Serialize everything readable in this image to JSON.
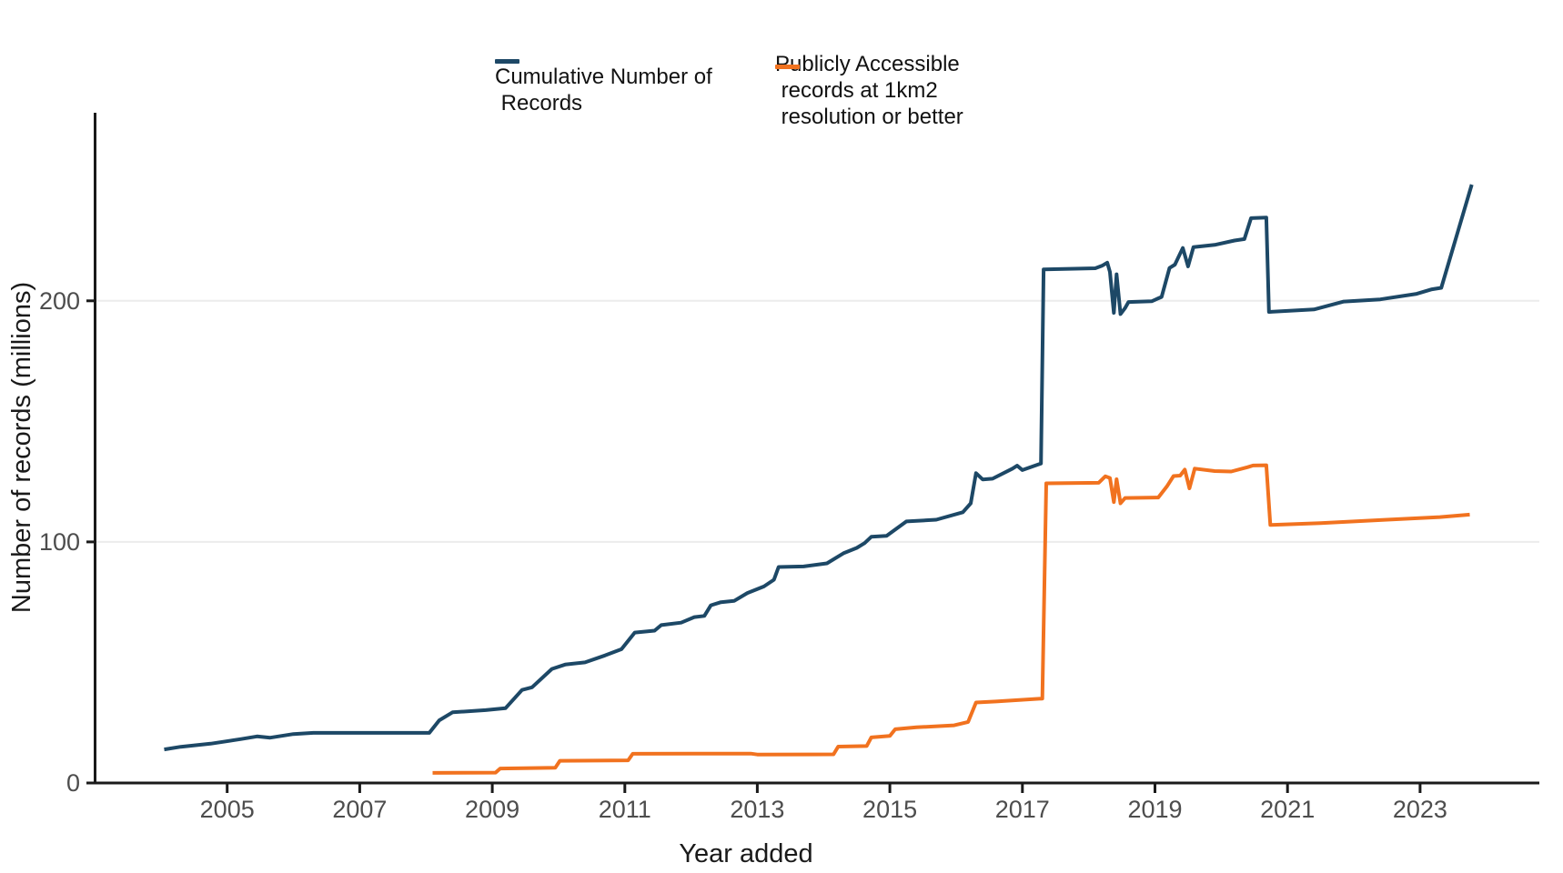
{
  "chart_data": {
    "type": "line",
    "title": "",
    "xlabel": "Year added",
    "ylabel": "Number of records (millions)",
    "x_domain": [
      2003.0,
      2024.8
    ],
    "y_domain": [
      0,
      278
    ],
    "x_ticks": [
      2005,
      2007,
      2009,
      2011,
      2013,
      2015,
      2017,
      2019,
      2021,
      2023
    ],
    "x_tick_labels": [
      "2005",
      "2007",
      "2009",
      "2011",
      "2013",
      "2015",
      "2017",
      "2019",
      "2021",
      "2023"
    ],
    "y_ticks": [
      0,
      100,
      200
    ],
    "y_tick_labels": [
      "0",
      "100",
      "200"
    ],
    "grid": "horizontal-only",
    "legend_position": "top-center",
    "series": [
      {
        "name": "Cumulative Number of Records",
        "color": "#1d4866",
        "points": [
          [
            2004.05,
            13.9
          ],
          [
            2004.3,
            15.0
          ],
          [
            2004.75,
            16.3
          ],
          [
            2005.2,
            18.2
          ],
          [
            2005.45,
            19.3
          ],
          [
            2005.65,
            18.8
          ],
          [
            2006.0,
            20.3
          ],
          [
            2006.3,
            20.8
          ],
          [
            2008.05,
            20.8
          ],
          [
            2008.2,
            26.0
          ],
          [
            2008.4,
            29.3
          ],
          [
            2008.9,
            30.2
          ],
          [
            2009.2,
            31.0
          ],
          [
            2009.45,
            38.6
          ],
          [
            2009.6,
            39.7
          ],
          [
            2009.9,
            47.3
          ],
          [
            2010.1,
            49.1
          ],
          [
            2010.4,
            50.0
          ],
          [
            2010.7,
            52.9
          ],
          [
            2010.95,
            55.5
          ],
          [
            2011.15,
            62.4
          ],
          [
            2011.45,
            63.2
          ],
          [
            2011.55,
            65.5
          ],
          [
            2011.85,
            66.5
          ],
          [
            2012.05,
            68.8
          ],
          [
            2012.2,
            69.3
          ],
          [
            2012.3,
            73.7
          ],
          [
            2012.45,
            75.0
          ],
          [
            2012.65,
            75.5
          ],
          [
            2012.85,
            78.8
          ],
          [
            2013.1,
            81.5
          ],
          [
            2013.25,
            84.3
          ],
          [
            2013.32,
            89.6
          ],
          [
            2013.7,
            89.8
          ],
          [
            2014.05,
            91.1
          ],
          [
            2014.3,
            95.3
          ],
          [
            2014.5,
            97.5
          ],
          [
            2014.62,
            99.5
          ],
          [
            2014.72,
            102.1
          ],
          [
            2014.95,
            102.5
          ],
          [
            2015.25,
            108.5
          ],
          [
            2015.7,
            109.2
          ],
          [
            2016.1,
            112.3
          ],
          [
            2016.22,
            116.0
          ],
          [
            2016.3,
            128.5
          ],
          [
            2016.4,
            125.9
          ],
          [
            2016.55,
            126.2
          ],
          [
            2016.85,
            130.4
          ],
          [
            2016.92,
            131.6
          ],
          [
            2017.0,
            129.8
          ],
          [
            2017.28,
            132.5
          ],
          [
            2017.32,
            213.0
          ],
          [
            2018.1,
            213.5
          ],
          [
            2018.2,
            214.5
          ],
          [
            2018.28,
            215.8
          ],
          [
            2018.32,
            212.0
          ],
          [
            2018.38,
            195.0
          ],
          [
            2018.42,
            211.0
          ],
          [
            2018.48,
            194.5
          ],
          [
            2018.55,
            197.0
          ],
          [
            2018.6,
            199.5
          ],
          [
            2018.95,
            199.8
          ],
          [
            2019.1,
            201.6
          ],
          [
            2019.22,
            213.6
          ],
          [
            2019.3,
            215.0
          ],
          [
            2019.42,
            221.9
          ],
          [
            2019.5,
            214.3
          ],
          [
            2019.58,
            222.3
          ],
          [
            2019.9,
            223.2
          ],
          [
            2020.2,
            225.0
          ],
          [
            2020.35,
            225.6
          ],
          [
            2020.45,
            234.3
          ],
          [
            2020.68,
            234.5
          ],
          [
            2020.72,
            195.4
          ],
          [
            2021.4,
            196.4
          ],
          [
            2021.85,
            199.7
          ],
          [
            2022.4,
            200.6
          ],
          [
            2022.95,
            202.9
          ],
          [
            2023.18,
            204.8
          ],
          [
            2023.32,
            205.4
          ],
          [
            2023.78,
            248.2
          ]
        ]
      },
      {
        "name": "Publicly Accessible records at 1km2 resolution or better",
        "color": "#f1721f",
        "points": [
          [
            2008.1,
            4.2
          ],
          [
            2009.05,
            4.3
          ],
          [
            2009.12,
            6.0
          ],
          [
            2009.95,
            6.3
          ],
          [
            2010.02,
            9.2
          ],
          [
            2011.05,
            9.4
          ],
          [
            2011.12,
            12.1
          ],
          [
            2012.9,
            12.2
          ],
          [
            2013.0,
            11.8
          ],
          [
            2014.15,
            11.9
          ],
          [
            2014.22,
            15.1
          ],
          [
            2014.65,
            15.3
          ],
          [
            2014.72,
            18.9
          ],
          [
            2015.0,
            19.5
          ],
          [
            2015.08,
            22.3
          ],
          [
            2015.4,
            23.1
          ],
          [
            2015.97,
            23.9
          ],
          [
            2016.18,
            25.3
          ],
          [
            2016.3,
            33.4
          ],
          [
            2016.6,
            33.8
          ],
          [
            2017.3,
            35.0
          ],
          [
            2017.36,
            124.3
          ],
          [
            2018.15,
            124.5
          ],
          [
            2018.25,
            127.2
          ],
          [
            2018.32,
            126.5
          ],
          [
            2018.38,
            116.5
          ],
          [
            2018.42,
            126.0
          ],
          [
            2018.48,
            116.0
          ],
          [
            2018.55,
            118.2
          ],
          [
            2019.05,
            118.4
          ],
          [
            2019.18,
            123.0
          ],
          [
            2019.28,
            127.3
          ],
          [
            2019.38,
            127.5
          ],
          [
            2019.45,
            130.0
          ],
          [
            2019.52,
            122.2
          ],
          [
            2019.6,
            130.4
          ],
          [
            2019.9,
            129.4
          ],
          [
            2020.15,
            129.2
          ],
          [
            2020.4,
            131.0
          ],
          [
            2020.48,
            131.7
          ],
          [
            2020.68,
            131.8
          ],
          [
            2020.74,
            107.0
          ],
          [
            2021.5,
            107.8
          ],
          [
            2022.5,
            109.2
          ],
          [
            2023.3,
            110.3
          ],
          [
            2023.75,
            111.3
          ]
        ]
      }
    ]
  },
  "legend": {
    "entries": [
      {
        "name": "Cumulative Number of Records",
        "lines": [
          "Cumulative Number of",
          " Records"
        ]
      },
      {
        "name": "Publicly Accessible records at 1km2 resolution or better",
        "lines": [
          "Publicly Accessible",
          " records at 1km2",
          " resolution or better"
        ]
      }
    ]
  },
  "style": {
    "axis_color": "#1a1a1a",
    "grid_color": "#ececec",
    "tick_label_color": "#4d4d4d"
  }
}
